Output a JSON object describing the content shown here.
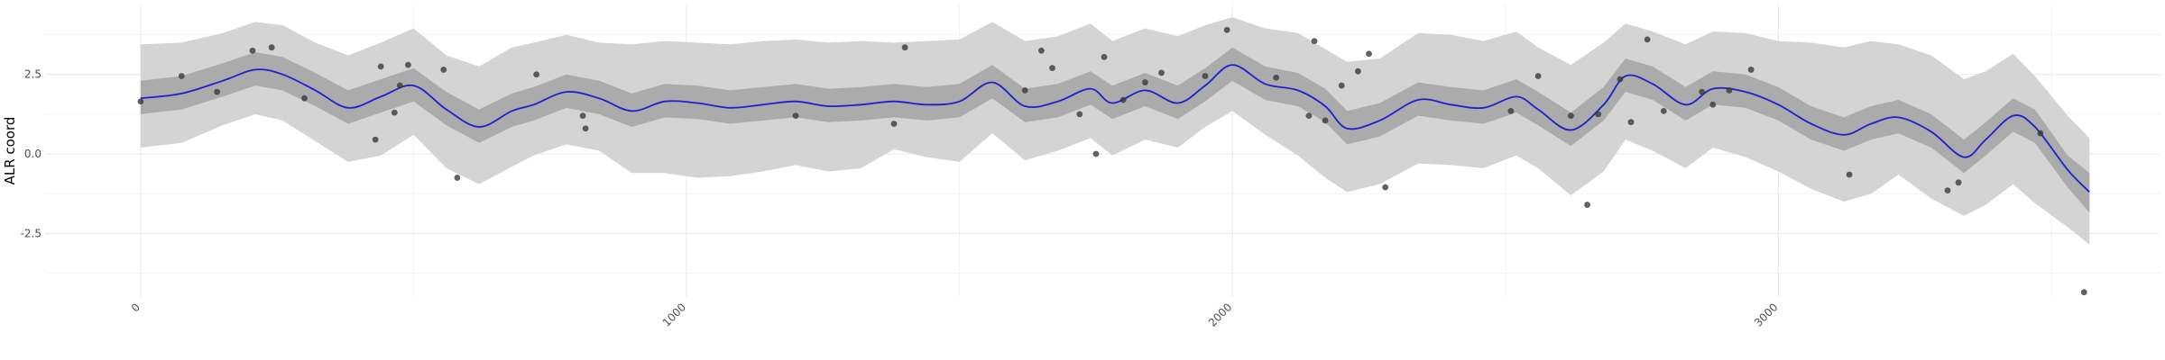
{
  "chart_data": {
    "type": "line",
    "title": "",
    "xlabel": "",
    "ylabel": "ALR coord",
    "xlim": [
      -175,
      3700
    ],
    "ylim": [
      -4.5,
      4.7
    ],
    "x_ticks": [
      0,
      1000,
      2000,
      3000
    ],
    "x_tick_labels": [
      "0",
      "1000",
      "2000",
      "3000"
    ],
    "y_ticks": [
      -2.5,
      0.0,
      2.5
    ],
    "y_tick_labels": [
      "-2.5",
      "0.0",
      "2.5"
    ],
    "grid": true,
    "legend": "none",
    "colors": {
      "mean_line": "#1f1fcf",
      "inner_band": "#ababab",
      "outer_band": "#d4d4d4",
      "points": "#3a3a3a",
      "grid_major": "#e8e8e8",
      "grid_minor": "#f3f3f3"
    },
    "mean_curve": {
      "x": [
        0,
        75,
        150,
        210,
        260,
        320,
        380,
        440,
        500,
        560,
        620,
        680,
        720,
        780,
        840,
        900,
        960,
        1020,
        1080,
        1140,
        1200,
        1260,
        1320,
        1380,
        1440,
        1500,
        1560,
        1620,
        1680,
        1740,
        1780,
        1840,
        1900,
        1950,
        2000,
        2060,
        2120,
        2170,
        2210,
        2270,
        2340,
        2400,
        2460,
        2520,
        2560,
        2620,
        2680,
        2720,
        2770,
        2830,
        2880,
        2940,
        3000,
        3060,
        3120,
        3170,
        3220,
        3280,
        3340,
        3380,
        3430,
        3470,
        3530,
        3570
      ],
      "y": [
        1.75,
        1.9,
        2.3,
        2.65,
        2.5,
        2.0,
        1.45,
        1.8,
        2.15,
        1.4,
        0.85,
        1.35,
        1.55,
        1.95,
        1.75,
        1.35,
        1.65,
        1.6,
        1.45,
        1.55,
        1.65,
        1.5,
        1.55,
        1.65,
        1.55,
        1.65,
        2.25,
        1.5,
        1.65,
        2.05,
        1.6,
        2.0,
        1.6,
        2.15,
        2.8,
        2.2,
        2.0,
        1.5,
        0.8,
        1.05,
        1.7,
        1.55,
        1.45,
        1.8,
        1.4,
        0.75,
        1.55,
        2.45,
        2.2,
        1.55,
        2.05,
        1.95,
        1.55,
        0.95,
        0.6,
        0.95,
        1.15,
        0.7,
        -0.1,
        0.45,
        1.2,
        0.85,
        -0.5,
        -1.2
      ]
    },
    "inner_band": {
      "lower": [
        1.25,
        1.4,
        1.8,
        2.15,
        2.0,
        1.5,
        0.95,
        1.3,
        1.65,
        0.9,
        0.35,
        0.85,
        1.05,
        1.45,
        1.25,
        0.85,
        1.15,
        1.1,
        0.95,
        1.05,
        1.15,
        1.0,
        1.05,
        1.15,
        1.05,
        1.15,
        1.75,
        1.0,
        1.15,
        1.55,
        1.1,
        1.5,
        1.1,
        1.65,
        2.3,
        1.7,
        1.5,
        1.0,
        0.3,
        0.55,
        1.2,
        1.05,
        0.95,
        1.3,
        0.9,
        0.25,
        1.05,
        1.95,
        1.7,
        1.05,
        1.55,
        1.45,
        1.05,
        0.45,
        0.1,
        0.45,
        0.65,
        0.2,
        -0.6,
        -0.05,
        0.7,
        0.35,
        -1.05,
        -1.85
      ],
      "upper": [
        2.3,
        2.45,
        2.85,
        3.2,
        3.05,
        2.55,
        2.0,
        2.35,
        2.7,
        1.95,
        1.4,
        1.9,
        2.1,
        2.5,
        2.3,
        1.9,
        2.2,
        2.15,
        2.0,
        2.1,
        2.2,
        2.05,
        2.1,
        2.2,
        2.1,
        2.2,
        2.8,
        2.05,
        2.2,
        2.6,
        2.15,
        2.55,
        2.15,
        2.7,
        3.35,
        2.75,
        2.55,
        2.05,
        1.35,
        1.6,
        2.25,
        2.1,
        2.0,
        2.35,
        1.95,
        1.3,
        2.1,
        3.0,
        2.75,
        2.1,
        2.6,
        2.5,
        2.1,
        1.5,
        1.15,
        1.5,
        1.7,
        1.25,
        0.45,
        1.0,
        1.75,
        1.4,
        -0.05,
        -0.6
      ]
    },
    "outer_band": {
      "lower": [
        0.2,
        0.35,
        0.9,
        1.25,
        1.05,
        0.4,
        -0.25,
        -0.05,
        0.6,
        -0.45,
        -0.95,
        -0.4,
        -0.05,
        0.3,
        0.1,
        -0.6,
        -0.6,
        -0.75,
        -0.7,
        -0.55,
        -0.35,
        -0.55,
        -0.45,
        0.15,
        -0.1,
        -0.25,
        0.65,
        -0.2,
        0.1,
        0.5,
        -0.05,
        0.45,
        0.2,
        0.85,
        1.35,
        0.6,
        -0.05,
        -0.75,
        -1.2,
        -0.95,
        -0.3,
        -0.35,
        -0.45,
        -0.05,
        -0.45,
        -1.3,
        -0.55,
        0.45,
        0.1,
        -0.45,
        0.2,
        -0.1,
        -0.55,
        -1.1,
        -1.5,
        -1.25,
        -0.65,
        -1.4,
        -1.95,
        -1.6,
        -0.95,
        -1.55,
        -2.3,
        -2.85
      ],
      "upper": [
        3.45,
        3.5,
        3.8,
        4.15,
        4.05,
        3.5,
        3.1,
        3.5,
        3.95,
        3.1,
        2.75,
        3.35,
        3.5,
        3.75,
        3.5,
        3.45,
        3.55,
        3.5,
        3.45,
        3.55,
        3.6,
        3.5,
        3.55,
        3.5,
        3.55,
        3.6,
        4.15,
        3.55,
        3.7,
        4.1,
        3.55,
        3.95,
        3.7,
        4.05,
        4.3,
        3.95,
        3.8,
        3.3,
        2.9,
        3.0,
        3.8,
        3.75,
        3.55,
        3.85,
        3.35,
        2.8,
        3.5,
        4.1,
        3.85,
        3.45,
        3.85,
        3.8,
        3.55,
        3.5,
        3.35,
        3.55,
        3.45,
        3.1,
        2.35,
        2.6,
        3.15,
        2.45,
        1.2,
        0.5
      ]
    },
    "points": {
      "x": [
        0,
        75,
        140,
        205,
        240,
        300,
        430,
        440,
        465,
        475,
        490,
        555,
        580,
        725,
        810,
        815,
        1200,
        1380,
        1400,
        1620,
        1650,
        1670,
        1720,
        1750,
        1765,
        1800,
        1840,
        1870,
        1950,
        1990,
        2080,
        2140,
        2150,
        2170,
        2200,
        2230,
        2250,
        2280,
        2510,
        2560,
        2620,
        2650,
        2670,
        2710,
        2730,
        2760,
        2790,
        2860,
        2880,
        2910,
        2950,
        3130,
        3310,
        3330,
        3480,
        3560
      ],
      "y": [
        1.65,
        2.45,
        1.95,
        3.25,
        3.35,
        1.75,
        0.45,
        2.75,
        1.3,
        2.15,
        2.8,
        2.65,
        -0.75,
        2.5,
        1.2,
        0.8,
        1.2,
        0.95,
        3.35,
        2.0,
        3.25,
        2.7,
        1.25,
        0.0,
        3.05,
        1.7,
        2.25,
        2.55,
        2.45,
        3.9,
        2.4,
        1.2,
        3.55,
        1.05,
        2.15,
        2.6,
        3.15,
        -1.05,
        1.35,
        2.45,
        1.2,
        -1.6,
        1.25,
        2.35,
        1.0,
        3.6,
        1.35,
        1.95,
        1.55,
        2.0,
        2.65,
        -0.65,
        -1.15,
        -0.9,
        0.65,
        -4.35
      ]
    }
  }
}
